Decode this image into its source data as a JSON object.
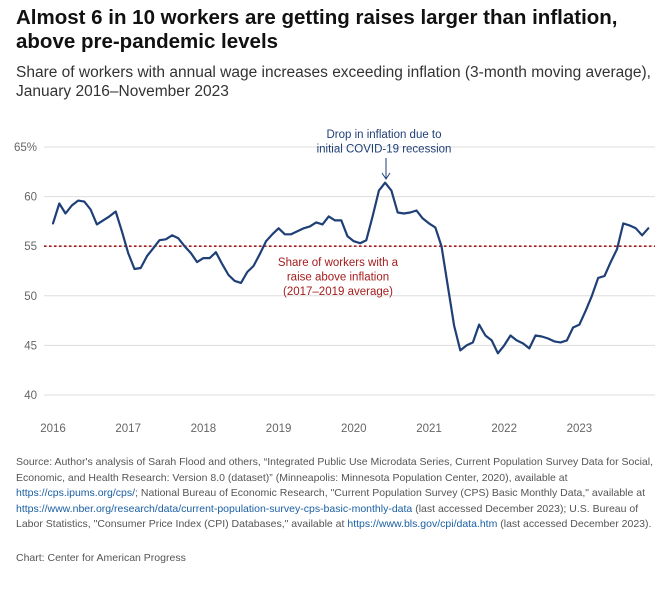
{
  "title": "Almost 6 in 10 workers are getting raises larger than inflation, above pre-pandemic levels",
  "subtitle": "Share of workers with annual wage increases exceeding inflation (3-month moving average), January 2016–November 2023",
  "source": {
    "p1": "Source: Author's analysis of Sarah Flood and others, “Integrated Public Use Microdata Series, Current Population Survey Data for Social, Economic, and Health Research: Version 8.0 (dataset)” (Minneapolis: Minnesota Population Center, 2020), available at ",
    "link1": "https://cps.ipums.org/cps/",
    "p2": "; National Bureau of Economic Research, \"Current Population Survey (CPS) Basic Monthly Data,\" available at ",
    "link2": "https://www.nber.org/research/data/current-population-survey-cps-basic-monthly-data",
    "p3": " (last accessed December 2023); U.S. Bureau of Labor Statistics, \"Consumer Price Index (CPI) Databases,\" available at ",
    "link3": "https://www.bls.gov/cpi/data.htm",
    "p4": " (last accessed December 2023)."
  },
  "credit": "Chart: Center for American Progress",
  "colors": {
    "line": "#1f3f77",
    "reference": "#a51c1c",
    "annotation_blue": "#1f3f77",
    "annotation_red": "#a51c1c",
    "grid": "#dddddd"
  },
  "chart_data": {
    "type": "line",
    "title": "",
    "xlabel": "",
    "ylabel": "",
    "ylim": [
      40,
      65
    ],
    "yticks": [
      "65%",
      "60",
      "55",
      "50",
      "45",
      "40"
    ],
    "xticks": [
      "2016",
      "2017",
      "2018",
      "2019",
      "2020",
      "2021",
      "2022",
      "2023"
    ],
    "grid": true,
    "series": [
      {
        "x_start": "2016-01",
        "x_end": "2023-11",
        "frequency": "monthly",
        "values": [
          57.3,
          59.3,
          58.3,
          59.1,
          59.6,
          59.5,
          58.7,
          57.2,
          57.6,
          58.0,
          58.5,
          56.5,
          54.3,
          52.7,
          52.8,
          54.0,
          54.8,
          55.6,
          55.7,
          56.1,
          55.8,
          55.0,
          54.3,
          53.4,
          53.8,
          53.8,
          54.4,
          53.2,
          52.1,
          51.5,
          51.3,
          52.4,
          53.0,
          54.2,
          55.5,
          56.2,
          56.8,
          56.2,
          56.2,
          56.5,
          56.8,
          57.0,
          57.4,
          57.2,
          58.0,
          57.6,
          57.6,
          56.0,
          55.5,
          55.3,
          55.6,
          58.0,
          60.6,
          61.4,
          60.6,
          58.4,
          58.3,
          58.4,
          58.6,
          57.8,
          57.3,
          56.9,
          55.0,
          51.0,
          47.0,
          44.5,
          45.0,
          45.3,
          47.1,
          46.0,
          45.5,
          44.2,
          45.0,
          46.0,
          45.5,
          45.2,
          44.7,
          46.0,
          45.9,
          45.7,
          45.4,
          45.3,
          45.5,
          46.8,
          47.1,
          48.5,
          50.0,
          51.8,
          52.0,
          53.4,
          54.7,
          57.3,
          57.1,
          56.8,
          56.1,
          56.8
        ]
      }
    ],
    "reference_line": {
      "value": 55,
      "label_lines": [
        "Share of workers with a",
        "raise above inflation",
        "(2017–2019 average)"
      ]
    },
    "annotation": {
      "label_lines": [
        "Drop in inflation due to",
        "initial COVID-19 recession"
      ],
      "at": "2020-06"
    }
  }
}
